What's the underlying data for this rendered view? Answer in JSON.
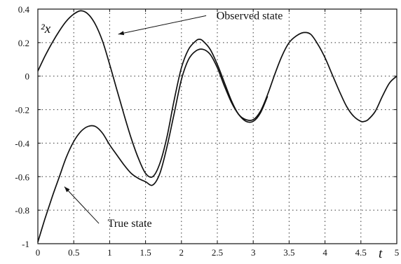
{
  "chart_data": {
    "type": "line",
    "xlim": [
      0,
      5
    ],
    "ylim": [
      -1,
      0.4
    ],
    "xticks": [
      "0",
      "0.5",
      "1",
      "1.5",
      "2",
      "2.5",
      "3",
      "3.5",
      "4",
      "4.5",
      "5"
    ],
    "yticks": [
      "0.4",
      "0.2",
      "0",
      "-0.2",
      "-0.4",
      "-0.6",
      "-0.8",
      "-1"
    ],
    "xlabel": "t",
    "ylabel": "²x",
    "grid": true,
    "series": [
      {
        "name": "Observed state",
        "x": [
          0,
          0.1,
          0.2,
          0.3,
          0.4,
          0.5,
          0.6,
          0.7,
          0.8,
          0.9,
          1.0,
          1.1,
          1.2,
          1.3,
          1.4,
          1.5,
          1.6,
          1.7,
          1.8,
          1.9,
          2.0,
          2.1,
          2.2,
          2.25,
          2.3,
          2.4,
          2.5,
          2.6,
          2.7,
          2.8,
          2.9,
          3.0,
          3.1,
          3.2,
          3.3,
          3.4,
          3.5,
          3.6,
          3.7,
          3.8,
          3.9,
          4.0,
          4.1,
          4.2,
          4.3,
          4.4,
          4.5,
          4.55,
          4.6,
          4.7,
          4.8,
          4.9,
          5.0
        ],
        "y": [
          0.03,
          0.12,
          0.2,
          0.27,
          0.33,
          0.37,
          0.39,
          0.37,
          0.31,
          0.21,
          0.07,
          -0.08,
          -0.23,
          -0.37,
          -0.49,
          -0.58,
          -0.6,
          -0.52,
          -0.36,
          -0.14,
          0.05,
          0.16,
          0.21,
          0.22,
          0.21,
          0.16,
          0.07,
          -0.04,
          -0.15,
          -0.23,
          -0.26,
          -0.26,
          -0.21,
          -0.11,
          0.01,
          0.12,
          0.2,
          0.24,
          0.26,
          0.25,
          0.19,
          0.11,
          0.01,
          -0.09,
          -0.18,
          -0.24,
          -0.27,
          -0.27,
          -0.26,
          -0.21,
          -0.12,
          -0.04,
          0.0
        ]
      },
      {
        "name": "True state",
        "x": [
          0,
          0.1,
          0.2,
          0.3,
          0.4,
          0.5,
          0.6,
          0.7,
          0.8,
          0.9,
          1.0,
          1.1,
          1.2,
          1.3,
          1.4,
          1.5,
          1.6,
          1.7,
          1.8,
          1.9,
          2.0,
          2.1,
          2.2,
          2.3,
          2.4,
          2.5,
          2.6,
          2.7,
          2.8,
          2.9,
          3.0,
          3.1,
          3.2
        ],
        "y": [
          -0.99,
          -0.85,
          -0.72,
          -0.6,
          -0.48,
          -0.39,
          -0.33,
          -0.3,
          -0.3,
          -0.34,
          -0.41,
          -0.47,
          -0.53,
          -0.58,
          -0.61,
          -0.63,
          -0.65,
          -0.58,
          -0.42,
          -0.22,
          -0.02,
          0.1,
          0.15,
          0.16,
          0.13,
          0.05,
          -0.06,
          -0.16,
          -0.23,
          -0.27,
          -0.27,
          -0.22,
          -0.12
        ]
      }
    ],
    "annotations": [
      {
        "text": "Observed state",
        "x": 2.95,
        "y": 0.34,
        "points_to_x": 1.12,
        "points_to_y": 0.25
      },
      {
        "text": "True state",
        "x": 1.28,
        "y": -0.9,
        "points_to_x": 0.37,
        "points_to_y": -0.66
      }
    ]
  }
}
